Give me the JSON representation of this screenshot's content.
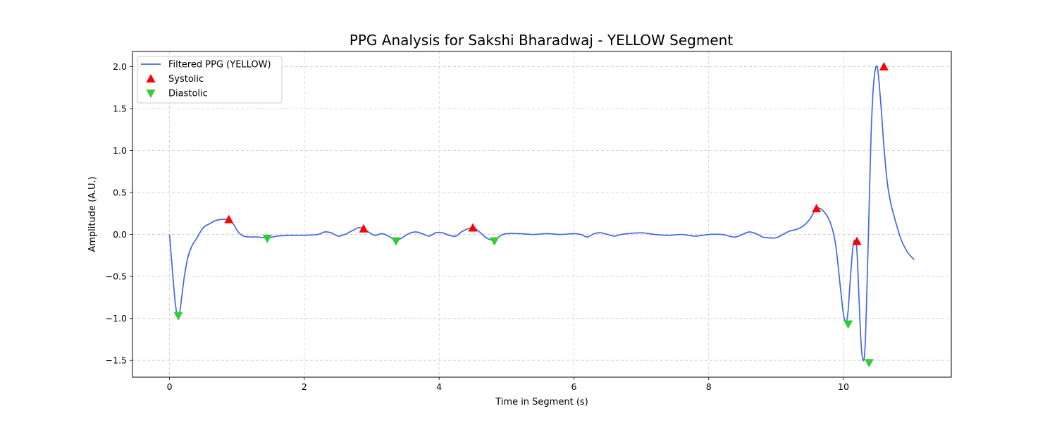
{
  "chart_data": {
    "type": "line",
    "title": "PPG Analysis for Sakshi Bharadwaj - YELLOW Segment",
    "xlabel": "Time in Segment (s)",
    "ylabel": "Amplitude (A.U.)",
    "xlim": [
      -0.55,
      11.6
    ],
    "ylim": [
      -1.7,
      2.18
    ],
    "xticks": [
      0,
      2,
      4,
      6,
      8,
      10
    ],
    "yticks": [
      -1.5,
      -1.0,
      -0.5,
      0.0,
      0.5,
      1.0,
      1.5,
      2.0
    ],
    "ytick_labels": [
      "−1.5",
      "−1.0",
      "−0.5",
      "0.0",
      "0.5",
      "1.0",
      "1.5",
      "2.0"
    ],
    "grid": true,
    "legend_position": "top-left",
    "colors": {
      "line": "#4169e1",
      "systolic": "#ff0000",
      "diastolic": "#32cd32",
      "grid": "#cccccc"
    },
    "series": [
      {
        "name": "Filtered PPG (YELLOW)",
        "kind": "line",
        "x": [
          0.0,
          0.03,
          0.06,
          0.09,
          0.12,
          0.15,
          0.18,
          0.22,
          0.27,
          0.33,
          0.4,
          0.5,
          0.6,
          0.7,
          0.8,
          0.88,
          0.95,
          1.02,
          1.1,
          1.2,
          1.3,
          1.45,
          1.6,
          1.8,
          2.0,
          2.2,
          2.3,
          2.4,
          2.5,
          2.6,
          2.7,
          2.8,
          2.88,
          2.95,
          3.05,
          3.15,
          3.25,
          3.36,
          3.45,
          3.55,
          3.65,
          3.75,
          3.85,
          3.95,
          4.05,
          4.15,
          4.25,
          4.35,
          4.5,
          4.6,
          4.7,
          4.82,
          4.9,
          5.0,
          5.2,
          5.4,
          5.6,
          5.8,
          6.0,
          6.1,
          6.2,
          6.3,
          6.4,
          6.5,
          6.6,
          6.7,
          6.8,
          7.0,
          7.2,
          7.4,
          7.6,
          7.8,
          8.0,
          8.2,
          8.3,
          8.4,
          8.5,
          8.6,
          8.7,
          8.8,
          8.9,
          9.0,
          9.1,
          9.2,
          9.3,
          9.4,
          9.5,
          9.6,
          9.7,
          9.8,
          9.88,
          9.95,
          10.0,
          10.04,
          10.07,
          10.1,
          10.14,
          10.17,
          10.2,
          10.23,
          10.26,
          10.29,
          10.32,
          10.35,
          10.38,
          10.41,
          10.45,
          10.5,
          10.55,
          10.6,
          10.65,
          10.7,
          10.75,
          10.8,
          10.85,
          10.9,
          10.95,
          11.0,
          11.05
        ],
        "y": [
          0.0,
          -0.3,
          -0.6,
          -0.85,
          -0.97,
          -0.93,
          -0.75,
          -0.5,
          -0.28,
          -0.14,
          -0.05,
          0.08,
          0.13,
          0.17,
          0.18,
          0.18,
          0.12,
          0.03,
          -0.02,
          -0.03,
          -0.03,
          -0.04,
          -0.02,
          -0.01,
          -0.01,
          0.0,
          0.03,
          0.02,
          -0.02,
          0.0,
          0.04,
          0.08,
          0.07,
          0.03,
          -0.01,
          0.01,
          -0.02,
          -0.07,
          -0.04,
          0.01,
          0.03,
          0.01,
          -0.02,
          0.02,
          0.02,
          -0.01,
          -0.02,
          0.04,
          0.08,
          0.03,
          -0.04,
          -0.07,
          -0.02,
          0.01,
          0.01,
          0.0,
          0.01,
          0.0,
          0.01,
          0.0,
          -0.03,
          0.01,
          0.02,
          0.0,
          -0.02,
          0.0,
          0.01,
          0.02,
          0.0,
          -0.01,
          0.0,
          -0.02,
          0.0,
          0.0,
          -0.02,
          -0.03,
          0.0,
          0.03,
          0.01,
          -0.03,
          -0.04,
          -0.04,
          0.0,
          0.04,
          0.06,
          0.1,
          0.18,
          0.31,
          0.28,
          0.15,
          -0.1,
          -0.6,
          -0.95,
          -1.05,
          -0.9,
          -0.55,
          -0.15,
          -0.07,
          -0.2,
          -0.75,
          -1.28,
          -1.5,
          -1.35,
          -0.6,
          0.3,
          1.2,
          1.82,
          2.0,
          1.6,
          1.05,
          0.62,
          0.38,
          0.22,
          0.08,
          -0.05,
          -0.14,
          -0.21,
          -0.26,
          -0.3
        ]
      },
      {
        "name": "Systolic",
        "kind": "marker",
        "marker": "triangle-up",
        "x": [
          0.88,
          2.88,
          4.5,
          9.6,
          10.2,
          10.6
        ],
        "y": [
          0.18,
          0.07,
          0.08,
          0.31,
          -0.08,
          2.0
        ]
      },
      {
        "name": "Diastolic",
        "kind": "marker",
        "marker": "triangle-down",
        "x": [
          0.13,
          1.45,
          3.36,
          4.82,
          10.07,
          10.38
        ],
        "y": [
          -0.97,
          -0.05,
          -0.08,
          -0.08,
          -1.07,
          -1.53
        ]
      }
    ]
  }
}
